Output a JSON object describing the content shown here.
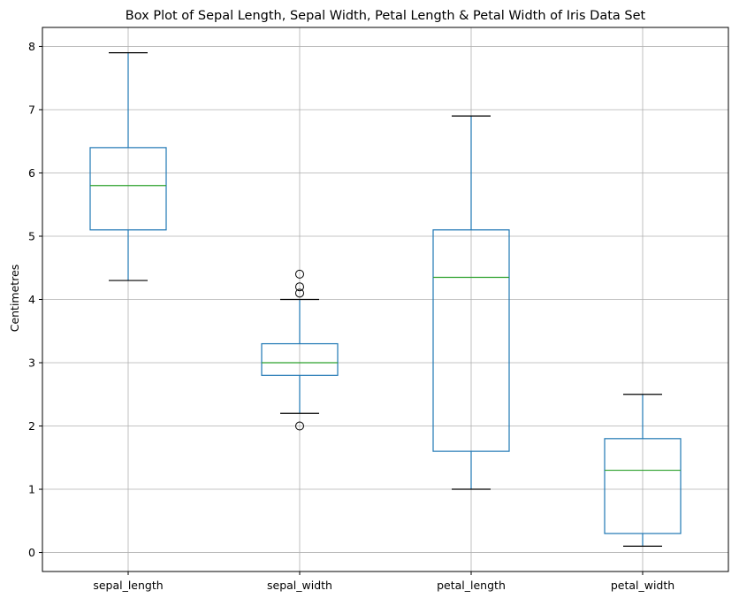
{
  "chart_data": {
    "type": "box",
    "title": "Box Plot of Sepal Length, Sepal Width, Petal Length & Petal Width of Iris Data Set",
    "xlabel": "",
    "ylabel": "Centimetres",
    "ylim": [
      -0.3,
      8.3
    ],
    "yticks": [
      0,
      1,
      2,
      3,
      4,
      5,
      6,
      7,
      8
    ],
    "grid": true,
    "categories": [
      "sepal_length",
      "sepal_width",
      "petal_length",
      "petal_width"
    ],
    "boxes": [
      {
        "category": "sepal_length",
        "whisker_low": 4.3,
        "q1": 5.1,
        "median": 5.8,
        "q3": 6.4,
        "whisker_high": 7.9,
        "outliers": []
      },
      {
        "category": "sepal_width",
        "whisker_low": 2.2,
        "q1": 2.8,
        "median": 3.0,
        "q3": 3.3,
        "whisker_high": 4.0,
        "outliers": [
          4.4,
          4.1,
          4.2,
          2.0
        ]
      },
      {
        "category": "petal_length",
        "whisker_low": 1.0,
        "q1": 1.6,
        "median": 4.35,
        "q3": 5.1,
        "whisker_high": 6.9,
        "outliers": []
      },
      {
        "category": "petal_width",
        "whisker_low": 0.1,
        "q1": 0.3,
        "median": 1.3,
        "q3": 1.8,
        "whisker_high": 2.5,
        "outliers": []
      }
    ],
    "colors": {
      "box": "#1f77b4",
      "median": "#2ca02c",
      "caps": "#000000",
      "outlier": "#000000",
      "grid": "#b0b0b0",
      "axes": "#000000"
    }
  }
}
